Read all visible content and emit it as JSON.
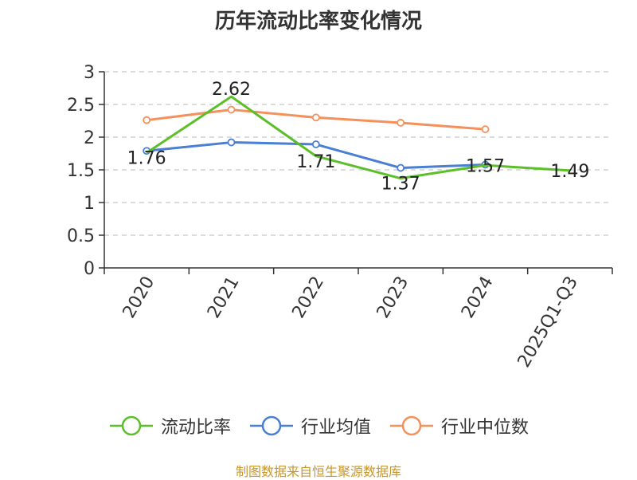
{
  "chart_data": {
    "type": "line",
    "title": "历年流动比率变化情况",
    "categories": [
      "2020",
      "2021",
      "2022",
      "2023",
      "2024",
      "2025Q1-Q3"
    ],
    "series": [
      {
        "name": "流动比率",
        "color": "#5cbf2a",
        "values": [
          1.76,
          2.62,
          1.71,
          1.37,
          1.57,
          1.49
        ],
        "data_labels": [
          "1.76",
          "2.62",
          "1.71",
          "1.37",
          "1.57",
          "1.49"
        ]
      },
      {
        "name": "行业均值",
        "color": "#4a7fd4",
        "values": [
          1.79,
          1.92,
          1.89,
          1.53,
          1.58,
          null
        ]
      },
      {
        "name": "行业中位数",
        "color": "#f5905a",
        "values": [
          2.26,
          2.42,
          2.3,
          2.22,
          2.12,
          null
        ]
      }
    ],
    "y_ticks": [
      "0",
      "0.5",
      "1",
      "1.5",
      "2",
      "2.5",
      "3"
    ],
    "ylim": [
      0,
      3
    ],
    "grid": true,
    "legend_position": "bottom",
    "source": "制图数据来自恒生聚源数据库"
  }
}
